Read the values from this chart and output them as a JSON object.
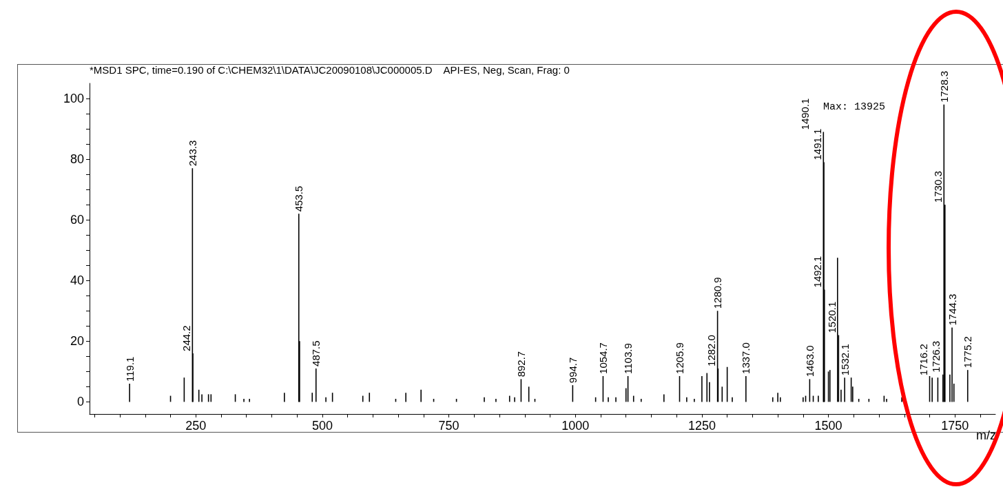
{
  "chart_data": {
    "type": "bar",
    "title": "*MSD1 SPC, time=0.190 of C:\\CHEM32\\1\\DATA\\JC20090108\\JC000005.D    API-ES, Neg, Scan, Frag: 0",
    "xlabel": "m/z",
    "annotations": [
      "Max: 13925",
      {
        "text": "119.1",
        "x": 119.1,
        "y": 6
      },
      {
        "text": "243.3",
        "x": 243.3,
        "y": 77
      },
      {
        "text": "244.2",
        "x": 244.2,
        "y": 16
      },
      {
        "text": "453.5",
        "x": 453.5,
        "y": 62
      },
      {
        "text": "487.5",
        "x": 487.5,
        "y": 11
      },
      {
        "text": "892.7",
        "x": 892.7,
        "y": 7.5
      },
      {
        "text": "994.7",
        "x": 994.7,
        "y": 5.5
      },
      {
        "text": "1054.7",
        "x": 1054.7,
        "y": 8.5
      },
      {
        "text": "1103.9",
        "x": 1103.9,
        "y": 8.5
      },
      {
        "text": "1205.9",
        "x": 1205.9,
        "y": 8.5
      },
      {
        "text": "1280.9",
        "x": 1280.9,
        "y": 30
      },
      {
        "text": "1282.0",
        "x": 1282.0,
        "y": 11
      },
      {
        "text": "1337.0",
        "x": 1337.0,
        "y": 8.5
      },
      {
        "text": "1463.0",
        "x": 1463.0,
        "y": 7.5
      },
      {
        "text": "1490.1",
        "x": 1490.1,
        "y": 89
      },
      {
        "text": "1491.1",
        "x": 1491.1,
        "y": 79
      },
      {
        "text": "1492.1",
        "x": 1492.1,
        "y": 37
      },
      {
        "text": "1520.1",
        "x": 1520.1,
        "y": 22
      },
      {
        "text": "1532.1",
        "x": 1532.1,
        "y": 8
      },
      {
        "text": "1716.2",
        "x": 1716.2,
        "y": 8
      },
      {
        "text": "1726.3",
        "x": 1726.3,
        "y": 9
      },
      {
        "text": "1728.3",
        "x": 1728.3,
        "y": 98
      },
      {
        "text": "1730.3",
        "x": 1730.3,
        "y": 65
      },
      {
        "text": "1744.3",
        "x": 1744.3,
        "y": 24.5
      },
      {
        "text": "1775.2",
        "x": 1775.2,
        "y": 10.5
      }
    ],
    "color": "#000000",
    "x": [
      119.1,
      200,
      227,
      243.3,
      244.2,
      256,
      262,
      275,
      280,
      328,
      345,
      356,
      425,
      453.5,
      455,
      480,
      487.5,
      507,
      520,
      580,
      593,
      645,
      665,
      695,
      720,
      765,
      820,
      843,
      870,
      880,
      892.7,
      908,
      920,
      994.7,
      1040,
      1054.7,
      1065,
      1080,
      1100,
      1103.9,
      1115,
      1130,
      1175,
      1205.9,
      1220,
      1235,
      1250,
      1260,
      1265,
      1280.9,
      1282.0,
      1290,
      1300,
      1310,
      1337.0,
      1390,
      1400,
      1405,
      1450,
      1455,
      1463.0,
      1470,
      1480,
      1490.1,
      1491.1,
      1492.1,
      1500,
      1503,
      1518,
      1520.1,
      1525,
      1532.1,
      1545,
      1548,
      1560,
      1580,
      1610,
      1615,
      1645,
      1700,
      1705,
      1716.2,
      1726.3,
      1728.3,
      1730.3,
      1740,
      1744.3,
      1748,
      1775.2
    ],
    "values": [
      6,
      2,
      8,
      77,
      16,
      4,
      2.5,
      2.5,
      2.5,
      2.5,
      1,
      1,
      3,
      62,
      20,
      3,
      11,
      1.5,
      3,
      2,
      3,
      1,
      3,
      4,
      1,
      1,
      1.5,
      1,
      2,
      1.5,
      7.5,
      5,
      1,
      5.5,
      1.5,
      8.5,
      1.5,
      1.5,
      4.5,
      8.5,
      2,
      1,
      2.5,
      8.5,
      1.5,
      1,
      8.5,
      9.5,
      6.5,
      30,
      11,
      5,
      11.5,
      1.5,
      8.5,
      1.5,
      3,
      1.5,
      1.5,
      2,
      7.5,
      2,
      2,
      89,
      79,
      37,
      10,
      10.5,
      47.5,
      22,
      4,
      8,
      8,
      5,
      1,
      1,
      2,
      1,
      1.5,
      8.5,
      8,
      8,
      9,
      98,
      65,
      9,
      24.5,
      6,
      10.5
    ],
    "xlim": [
      40,
      1830
    ],
    "ylim": [
      -4,
      105
    ],
    "xticks": [
      {
        "value": 50,
        "label": null
      },
      {
        "value": 100,
        "label": null
      },
      {
        "value": 150,
        "label": null
      },
      {
        "value": 200,
        "label": null
      },
      250,
      {
        "value": 300,
        "label": null
      },
      {
        "value": 350,
        "label": null
      },
      {
        "value": 400,
        "label": null
      },
      {
        "value": 450,
        "label": null
      },
      500,
      {
        "value": 550,
        "label": null
      },
      {
        "value": 600,
        "label": null
      },
      {
        "value": 650,
        "label": null
      },
      {
        "value": 700,
        "label": null
      },
      750,
      {
        "value": 800,
        "label": null
      },
      {
        "value": 850,
        "label": null
      },
      {
        "value": 900,
        "label": null
      },
      {
        "value": 950,
        "label": null
      },
      1000,
      {
        "value": 1050,
        "label": null
      },
      {
        "value": 1100,
        "label": null
      },
      {
        "value": 1150,
        "label": null
      },
      {
        "value": 1200,
        "label": null
      },
      1250,
      {
        "value": 1300,
        "label": null
      },
      {
        "value": 1350,
        "label": null
      },
      {
        "value": 1400,
        "label": null
      },
      {
        "value": 1450,
        "label": null
      },
      1500,
      {
        "value": 1550,
        "label": null
      },
      {
        "value": 1600,
        "label": null
      },
      {
        "value": 1650,
        "label": null
      },
      {
        "value": 1700,
        "label": null
      },
      1750,
      {
        "value": 1800,
        "label": null
      }
    ],
    "yticks": [
      0,
      {
        "value": 5,
        "label": null
      },
      {
        "value": 10,
        "label": null
      },
      {
        "value": 15,
        "label": null
      },
      20,
      {
        "value": 25,
        "label": null
      },
      {
        "value": 30,
        "label": null
      },
      {
        "value": 35,
        "label": null
      },
      40,
      {
        "value": 45,
        "label": null
      },
      {
        "value": 50,
        "label": null
      },
      {
        "value": 55,
        "label": null
      },
      60,
      {
        "value": 65,
        "label": null
      },
      {
        "value": 70,
        "label": null
      },
      {
        "value": 75,
        "label": null
      },
      80,
      {
        "value": 85,
        "label": null
      },
      {
        "value": 90,
        "label": null
      },
      {
        "value": 95,
        "label": null
      },
      100
    ]
  }
}
